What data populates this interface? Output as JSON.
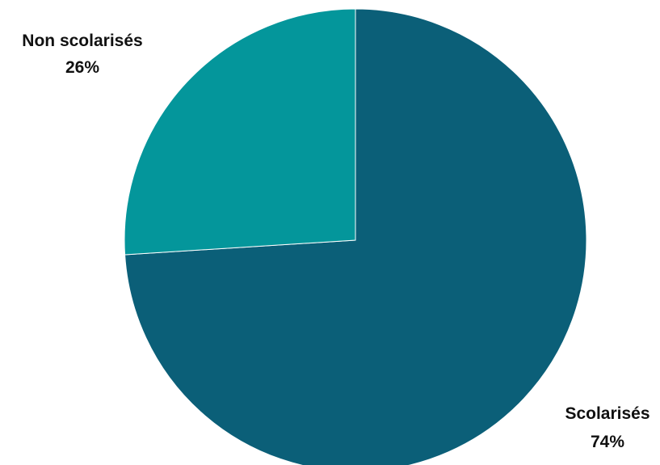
{
  "chart_data": {
    "type": "pie",
    "title": "",
    "slices": [
      {
        "label": "Scolarisés",
        "value": 74,
        "value_label": "74%",
        "color": "#0b5f78"
      },
      {
        "label": "Non scolarisés",
        "value": 26,
        "value_label": "26%",
        "color": "#04969b"
      }
    ],
    "start_angle_deg": 0,
    "direction": "clockwise",
    "legend": "none",
    "label_style": "outside-bold"
  }
}
